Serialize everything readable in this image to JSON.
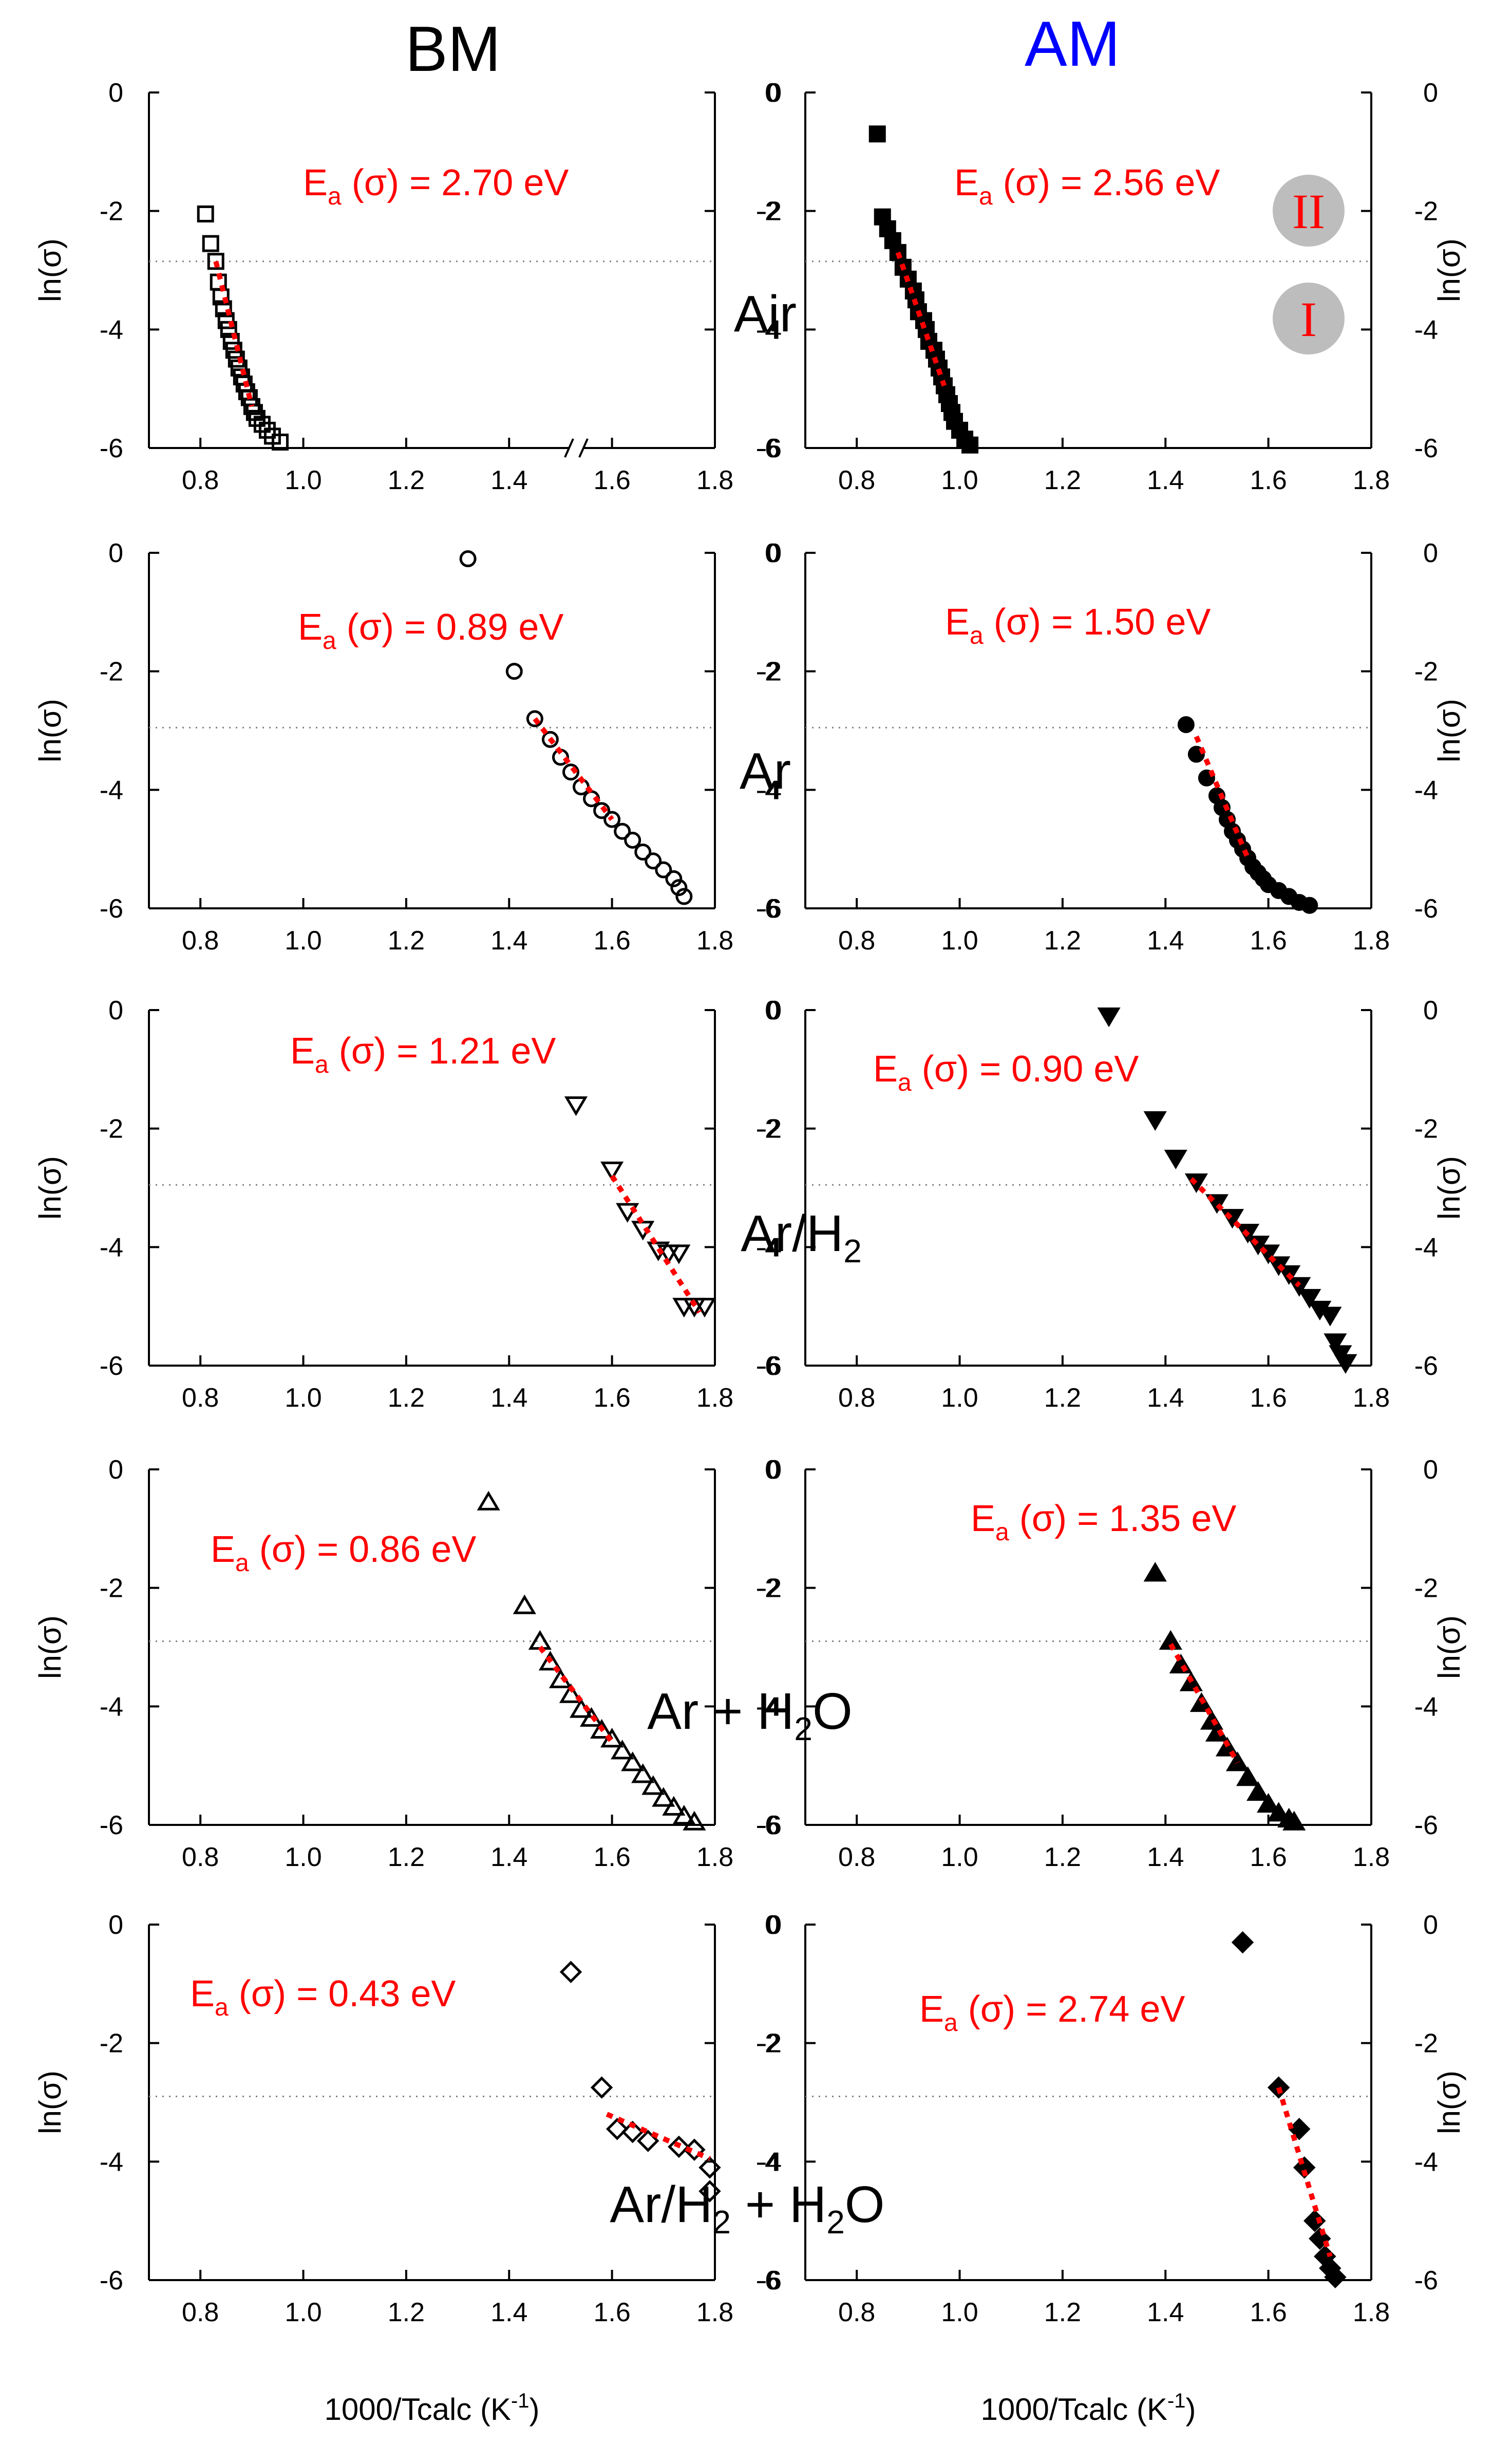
{
  "columns": {
    "left": "BM",
    "right": "AM"
  },
  "colors": {
    "fit": "#ff0000",
    "title_left": "#000000",
    "title_right": "#0000ff",
    "threshold": "#808080",
    "region_badge": "#bdbdbd"
  },
  "regions": {
    "upper": "II",
    "lower": "I"
  },
  "x_axis_title": "1000/Tcalc (K⁻¹)",
  "y_axis_title": "ln(σ)",
  "chart_data": [
    {
      "type": "scatter",
      "panel": "BM-Air",
      "atmosphere": "Air",
      "ea_text": "E_a (σ) = 2.70 eV",
      "xlim": [
        0.7,
        1.8
      ],
      "ylim": [
        -6,
        0
      ],
      "axis_break": true,
      "marker": "square",
      "filled": false,
      "x": [
        0.81,
        0.82,
        0.83,
        0.835,
        0.84,
        0.845,
        0.85,
        0.855,
        0.86,
        0.865,
        0.87,
        0.875,
        0.88,
        0.885,
        0.89,
        0.895,
        0.9,
        0.905,
        0.91,
        0.92,
        0.93,
        0.94,
        0.955
      ],
      "y": [
        -2.05,
        -2.55,
        -2.85,
        -3.2,
        -3.45,
        -3.65,
        -3.85,
        -4.0,
        -4.2,
        -4.35,
        -4.5,
        -4.65,
        -4.8,
        -4.92,
        -5.05,
        -5.15,
        -5.3,
        -5.4,
        -5.5,
        -5.6,
        -5.7,
        -5.8,
        -5.9
      ],
      "fit_x": [
        0.83,
        0.9
      ],
      "fit_y": [
        -2.85,
        -5.3
      ],
      "threshold_y": -2.85
    },
    {
      "type": "scatter",
      "panel": "AM-Air",
      "atmosphere": "Air",
      "ea_text": "E_a (σ) = 2.56 eV",
      "xlim": [
        0.7,
        1.8
      ],
      "ylim": [
        -6,
        0
      ],
      "marker": "square",
      "filled": true,
      "x": [
        0.84,
        0.85,
        0.86,
        0.87,
        0.88,
        0.89,
        0.9,
        0.91,
        0.915,
        0.92,
        0.93,
        0.935,
        0.94,
        0.95,
        0.955,
        0.96,
        0.965,
        0.97,
        0.975,
        0.98,
        0.985,
        0.99,
        1.0,
        1.01,
        1.02
      ],
      "y": [
        -0.7,
        -2.1,
        -2.3,
        -2.5,
        -2.7,
        -2.95,
        -3.15,
        -3.35,
        -3.5,
        -3.7,
        -3.85,
        -4.0,
        -4.2,
        -4.35,
        -4.5,
        -4.65,
        -4.8,
        -4.95,
        -5.1,
        -5.25,
        -5.4,
        -5.55,
        -5.7,
        -5.85,
        -5.95
      ],
      "fit_x": [
        0.88,
        0.97
      ],
      "fit_y": [
        -2.7,
        -4.95
      ],
      "threshold_y": -2.85
    },
    {
      "type": "scatter",
      "panel": "BM-Ar",
      "atmosphere": "Ar",
      "ea_text": "E_a (σ) = 0.89 eV",
      "xlim": [
        0.7,
        1.8
      ],
      "ylim": [
        -6,
        0
      ],
      "marker": "circle",
      "filled": false,
      "x": [
        1.32,
        1.41,
        1.45,
        1.48,
        1.5,
        1.52,
        1.54,
        1.56,
        1.58,
        1.6,
        1.62,
        1.64,
        1.66,
        1.68,
        1.7,
        1.72,
        1.73,
        1.74
      ],
      "y": [
        -0.1,
        -2.0,
        -2.8,
        -3.15,
        -3.45,
        -3.7,
        -3.95,
        -4.15,
        -4.35,
        -4.5,
        -4.7,
        -4.85,
        -5.05,
        -5.2,
        -5.35,
        -5.5,
        -5.65,
        -5.8
      ],
      "fit_x": [
        1.45,
        1.6
      ],
      "fit_y": [
        -2.8,
        -4.5
      ],
      "threshold_y": -2.95
    },
    {
      "type": "scatter",
      "panel": "AM-Ar",
      "atmosphere": "Ar",
      "ea_text": "E_a (σ) = 1.50 eV",
      "xlim": [
        0.7,
        1.8
      ],
      "ylim": [
        -6,
        0
      ],
      "marker": "circle",
      "filled": true,
      "x": [
        1.44,
        1.46,
        1.48,
        1.5,
        1.51,
        1.52,
        1.53,
        1.54,
        1.55,
        1.56,
        1.57,
        1.58,
        1.59,
        1.6,
        1.62,
        1.64,
        1.66,
        1.68
      ],
      "y": [
        -2.9,
        -3.4,
        -3.8,
        -4.1,
        -4.3,
        -4.5,
        -4.7,
        -4.85,
        -5.0,
        -5.15,
        -5.3,
        -5.4,
        -5.5,
        -5.6,
        -5.7,
        -5.8,
        -5.9,
        -5.95
      ],
      "fit_x": [
        1.46,
        1.56
      ],
      "fit_y": [
        -3.1,
        -5.15
      ],
      "threshold_y": -2.95
    },
    {
      "type": "scatter",
      "panel": "BM-Ar/H2",
      "atmosphere": "Ar/H2",
      "ea_text": "E_a (σ) = 1.21 eV",
      "xlim": [
        0.7,
        1.8
      ],
      "ylim": [
        -6,
        0
      ],
      "marker": "triangle-down",
      "filled": false,
      "x": [
        1.53,
        1.6,
        1.63,
        1.66,
        1.69,
        1.71,
        1.73,
        1.74,
        1.76,
        1.78
      ],
      "y": [
        -1.6,
        -2.7,
        -3.4,
        -3.7,
        -4.05,
        -4.1,
        -4.1,
        -5.0,
        -5.0,
        -5.0
      ],
      "fit_x": [
        1.6,
        1.77
      ],
      "fit_y": [
        -2.8,
        -5.1
      ],
      "threshold_y": -2.95
    },
    {
      "type": "scatter",
      "panel": "AM-Ar/H2",
      "atmosphere": "Ar/H2",
      "ea_text": "E_a (σ) = 0.90 eV",
      "xlim": [
        0.7,
        1.8
      ],
      "ylim": [
        -6,
        0
      ],
      "marker": "triangle-down",
      "filled": true,
      "x": [
        1.29,
        1.38,
        1.42,
        1.46,
        1.5,
        1.53,
        1.56,
        1.58,
        1.6,
        1.62,
        1.64,
        1.66,
        1.68,
        1.7,
        1.72,
        1.73,
        1.74,
        1.75
      ],
      "y": [
        -0.1,
        -1.85,
        -2.5,
        -2.9,
        -3.25,
        -3.5,
        -3.75,
        -3.95,
        -4.1,
        -4.3,
        -4.45,
        -4.65,
        -4.85,
        -5.05,
        -5.15,
        -5.6,
        -5.8,
        -5.95
      ],
      "fit_x": [
        1.45,
        1.66
      ],
      "fit_y": [
        -2.85,
        -4.65
      ],
      "threshold_y": -2.95
    },
    {
      "type": "scatter",
      "panel": "BM-Ar+H2O",
      "atmosphere": "Ar + H2O",
      "ea_text": "E_a (σ) = 0.86 eV",
      "xlim": [
        0.7,
        1.8
      ],
      "ylim": [
        -6,
        0
      ],
      "marker": "triangle-up",
      "filled": false,
      "x": [
        1.36,
        1.43,
        1.46,
        1.48,
        1.5,
        1.52,
        1.54,
        1.56,
        1.58,
        1.6,
        1.62,
        1.64,
        1.66,
        1.68,
        1.7,
        1.72,
        1.74,
        1.76
      ],
      "y": [
        -0.55,
        -2.3,
        -2.9,
        -3.25,
        -3.55,
        -3.8,
        -4.05,
        -4.2,
        -4.4,
        -4.55,
        -4.75,
        -4.95,
        -5.15,
        -5.35,
        -5.55,
        -5.7,
        -5.85,
        -5.95
      ],
      "fit_x": [
        1.46,
        1.6
      ],
      "fit_y": [
        -3.0,
        -4.6
      ],
      "threshold_y": -2.9
    },
    {
      "type": "scatter",
      "panel": "AM-Ar+H2O",
      "atmosphere": "Ar + H2O",
      "ea_text": "E_a (σ) = 1.35 eV",
      "xlim": [
        0.7,
        1.8
      ],
      "ylim": [
        -6,
        0
      ],
      "marker": "triangle-up",
      "filled": true,
      "x": [
        1.38,
        1.41,
        1.43,
        1.45,
        1.47,
        1.49,
        1.5,
        1.52,
        1.54,
        1.56,
        1.58,
        1.6,
        1.62,
        1.64,
        1.65
      ],
      "y": [
        -1.75,
        -2.9,
        -3.3,
        -3.6,
        -3.95,
        -4.25,
        -4.45,
        -4.7,
        -4.95,
        -5.2,
        -5.45,
        -5.65,
        -5.8,
        -5.9,
        -5.95
      ],
      "fit_x": [
        1.41,
        1.54
      ],
      "fit_y": [
        -2.95,
        -4.95
      ],
      "threshold_y": -2.9
    },
    {
      "type": "scatter",
      "panel": "BM-Ar/H2+H2O",
      "atmosphere": "Ar/H2 + H2O",
      "ea_text": "E_a (σ) = 0.43 eV",
      "xlim": [
        0.7,
        1.8
      ],
      "ylim": [
        -6,
        0
      ],
      "marker": "diamond",
      "filled": false,
      "x": [
        1.52,
        1.58,
        1.61,
        1.64,
        1.67,
        1.73,
        1.76,
        1.79,
        1.79
      ],
      "y": [
        -0.8,
        -2.75,
        -3.45,
        -3.5,
        -3.65,
        -3.75,
        -3.8,
        -4.1,
        -4.5
      ],
      "fit_x": [
        1.59,
        1.79
      ],
      "fit_y": [
        -3.2,
        -3.95
      ],
      "threshold_y": -2.9
    },
    {
      "type": "scatter",
      "panel": "AM-Ar/H2+H2O",
      "atmosphere": "Ar/H2 + H2O",
      "ea_text": "E_a (σ) = 2.74 eV",
      "xlim": [
        0.7,
        1.8
      ],
      "ylim": [
        -6,
        0
      ],
      "marker": "diamond",
      "filled": true,
      "x": [
        1.55,
        1.62,
        1.66,
        1.67,
        1.69,
        1.7,
        1.71,
        1.72,
        1.73
      ],
      "y": [
        -0.3,
        -2.75,
        -3.45,
        -4.1,
        -5.0,
        -5.3,
        -5.6,
        -5.8,
        -5.95
      ],
      "fit_x": [
        1.62,
        1.72
      ],
      "fit_y": [
        -2.75,
        -5.6
      ],
      "threshold_y": -2.9
    }
  ]
}
